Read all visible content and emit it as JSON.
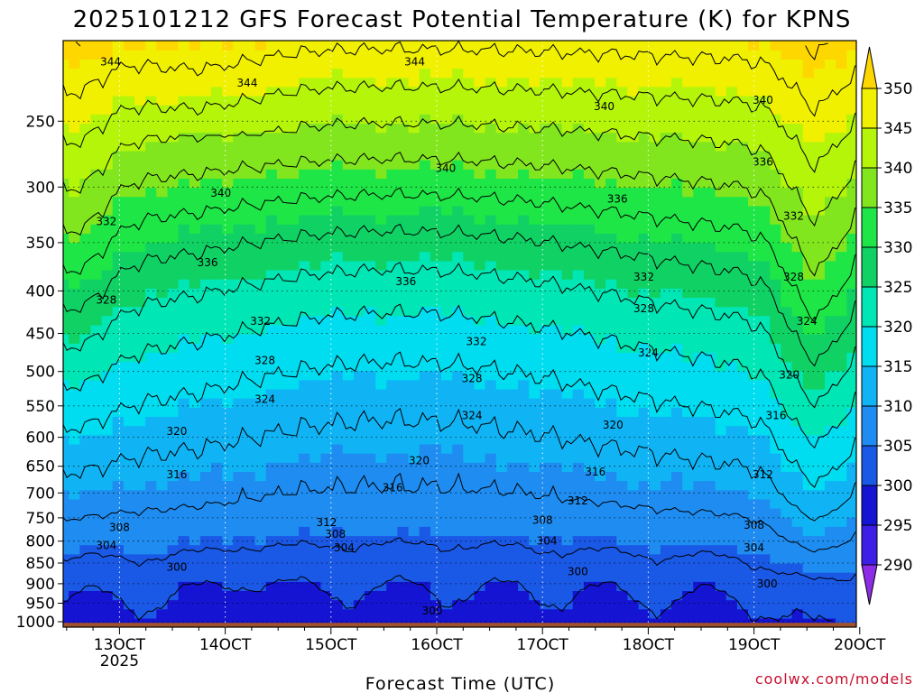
{
  "chart_data": {
    "type": "heatmap",
    "title": "2025101212 GFS Forecast Potential Temperature (K) for KPNS",
    "xlabel": "Forecast Time (UTC)",
    "ylabel": "",
    "credit": "coolwx.com/models",
    "y_scale": "log",
    "ylim": [
      1015,
      200
    ],
    "y_ticks": [
      250,
      300,
      350,
      400,
      450,
      500,
      550,
      600,
      650,
      700,
      750,
      800,
      850,
      900,
      950,
      1000
    ],
    "x_ticks": [
      {
        "hour": 12,
        "label": "13OCT",
        "sublabel": "2025"
      },
      {
        "hour": 36,
        "label": "14OCT",
        "sublabel": ""
      },
      {
        "hour": 60,
        "label": "15OCT",
        "sublabel": ""
      },
      {
        "hour": 84,
        "label": "16OCT",
        "sublabel": ""
      },
      {
        "hour": 108,
        "label": "17OCT",
        "sublabel": ""
      },
      {
        "hour": 132,
        "label": "18OCT",
        "sublabel": ""
      },
      {
        "hour": 156,
        "label": "19OCT",
        "sublabel": ""
      },
      {
        "hour": 180,
        "label": "20OCT",
        "sublabel": ""
      }
    ],
    "xlim": [
      0,
      180
    ],
    "colorbar": {
      "levels": [
        290,
        295,
        300,
        305,
        310,
        315,
        320,
        325,
        330,
        335,
        340,
        345,
        350
      ],
      "labels": [
        "290",
        "295",
        "300",
        "305",
        "310",
        "315",
        "320",
        "325",
        "330",
        "335",
        "340",
        "345",
        "350"
      ],
      "colors": [
        "#8c2ce6",
        "#3c1ee6",
        "#1414d2",
        "#1a58e6",
        "#1e8cf0",
        "#10b4f5",
        "#00dcf0",
        "#00e6b4",
        "#10d264",
        "#1ee646",
        "#82e61e",
        "#b4f50a",
        "#f0f000",
        "#ffd700"
      ]
    },
    "contour_interval_K": 4,
    "contour_labels": [
      {
        "value": "344",
        "hour": 10,
        "p": 212
      },
      {
        "value": "344",
        "hour": 41,
        "p": 225
      },
      {
        "value": "344",
        "hour": 79,
        "p": 212
      },
      {
        "value": "340",
        "hour": 35,
        "p": 305
      },
      {
        "value": "340",
        "hour": 86,
        "p": 285
      },
      {
        "value": "340",
        "hour": 122,
        "p": 240
      },
      {
        "value": "340",
        "hour": 158,
        "p": 236
      },
      {
        "value": "336",
        "hour": 32,
        "p": 370
      },
      {
        "value": "336",
        "hour": 77,
        "p": 390
      },
      {
        "value": "336",
        "hour": 125,
        "p": 310
      },
      {
        "value": "336",
        "hour": 158,
        "p": 280
      },
      {
        "value": "332",
        "hour": 9,
        "p": 330
      },
      {
        "value": "332",
        "hour": 44,
        "p": 435
      },
      {
        "value": "332",
        "hour": 93,
        "p": 460
      },
      {
        "value": "332",
        "hour": 131,
        "p": 385
      },
      {
        "value": "332",
        "hour": 165,
        "p": 325
      },
      {
        "value": "328",
        "hour": 9,
        "p": 410
      },
      {
        "value": "328",
        "hour": 45,
        "p": 485
      },
      {
        "value": "328",
        "hour": 92,
        "p": 510
      },
      {
        "value": "328",
        "hour": 131,
        "p": 420
      },
      {
        "value": "328",
        "hour": 165,
        "p": 385
      },
      {
        "value": "324",
        "hour": 45,
        "p": 540
      },
      {
        "value": "324",
        "hour": 92,
        "p": 565
      },
      {
        "value": "324",
        "hour": 132,
        "p": 475
      },
      {
        "value": "324",
        "hour": 168,
        "p": 435
      },
      {
        "value": "320",
        "hour": 25,
        "p": 590
      },
      {
        "value": "320",
        "hour": 80,
        "p": 640
      },
      {
        "value": "320",
        "hour": 124,
        "p": 580
      },
      {
        "value": "320",
        "hour": 164,
        "p": 505
      },
      {
        "value": "316",
        "hour": 25,
        "p": 665
      },
      {
        "value": "316",
        "hour": 74,
        "p": 690
      },
      {
        "value": "316",
        "hour": 120,
        "p": 660
      },
      {
        "value": "316",
        "hour": 161,
        "p": 565
      },
      {
        "value": "312",
        "hour": 59,
        "p": 760
      },
      {
        "value": "312",
        "hour": 116,
        "p": 715
      },
      {
        "value": "312",
        "hour": 158,
        "p": 665
      },
      {
        "value": "308",
        "hour": 12,
        "p": 770
      },
      {
        "value": "308",
        "hour": 61,
        "p": 785
      },
      {
        "value": "308",
        "hour": 108,
        "p": 755
      },
      {
        "value": "308",
        "hour": 156,
        "p": 765
      },
      {
        "value": "304",
        "hour": 9,
        "p": 810
      },
      {
        "value": "304",
        "hour": 63,
        "p": 815
      },
      {
        "value": "304",
        "hour": 109,
        "p": 800
      },
      {
        "value": "304",
        "hour": 156,
        "p": 815
      },
      {
        "value": "300",
        "hour": 25,
        "p": 860
      },
      {
        "value": "300",
        "hour": 116,
        "p": 870
      },
      {
        "value": "300",
        "hour": 159,
        "p": 900
      },
      {
        "value": "300",
        "hour": 83,
        "p": 970
      }
    ]
  }
}
